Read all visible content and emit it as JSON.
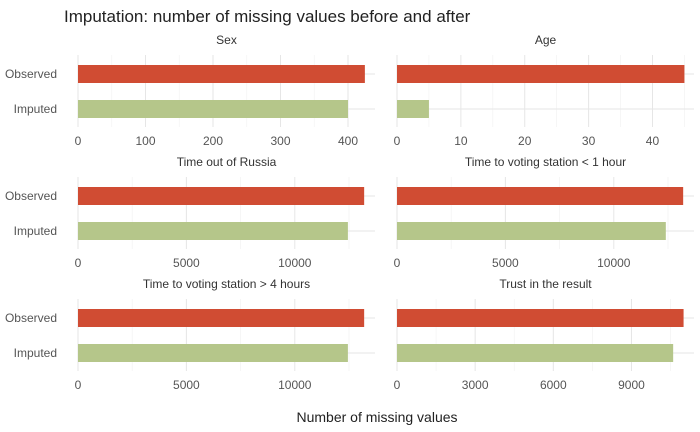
{
  "chart_data": {
    "type": "bar",
    "title": "Imputation: number of missing values before and after",
    "xlabel": "Number of missing values",
    "ylabel": "",
    "categories": [
      "Observed",
      "Imputed"
    ],
    "colors": {
      "Observed": "#d04c33",
      "Imputed": "#b5c68a"
    },
    "panels": [
      {
        "name": "Sex",
        "observed": 425,
        "imputed": 400,
        "xlim": [
          0,
          440
        ],
        "ticks": [
          0,
          100,
          200,
          300,
          400
        ],
        "tick_labels": [
          "0",
          "100",
          "200",
          "300",
          "400"
        ]
      },
      {
        "name": "Age",
        "observed": 45,
        "imputed": 5,
        "xlim": [
          0,
          46.5
        ],
        "ticks": [
          0,
          10,
          20,
          30,
          40
        ],
        "tick_labels": [
          "0",
          "10",
          "20",
          "30",
          "40"
        ]
      },
      {
        "name": "Time out of Russia",
        "observed": 13200,
        "imputed": 12450,
        "xlim": [
          0,
          13700
        ],
        "ticks": [
          0,
          5000,
          10000
        ],
        "tick_labels": [
          "0",
          "5000",
          "10000"
        ]
      },
      {
        "name": "Time to voting station < 1 hour",
        "observed": 13200,
        "imputed": 12400,
        "xlim": [
          0,
          13700
        ],
        "ticks": [
          0,
          5000,
          10000
        ],
        "tick_labels": [
          "0",
          "5000",
          "10000"
        ]
      },
      {
        "name": "Time to voting station > 4 hours",
        "observed": 13200,
        "imputed": 12450,
        "xlim": [
          0,
          13700
        ],
        "ticks": [
          0,
          5000,
          10000
        ],
        "tick_labels": [
          "0",
          "5000",
          "10000"
        ]
      },
      {
        "name": "Trust in the result",
        "observed": 11000,
        "imputed": 10600,
        "xlim": [
          0,
          11400
        ],
        "ticks": [
          0,
          3000,
          6000,
          9000
        ],
        "tick_labels": [
          "0",
          "3000",
          "6000",
          "9000"
        ]
      }
    ]
  }
}
